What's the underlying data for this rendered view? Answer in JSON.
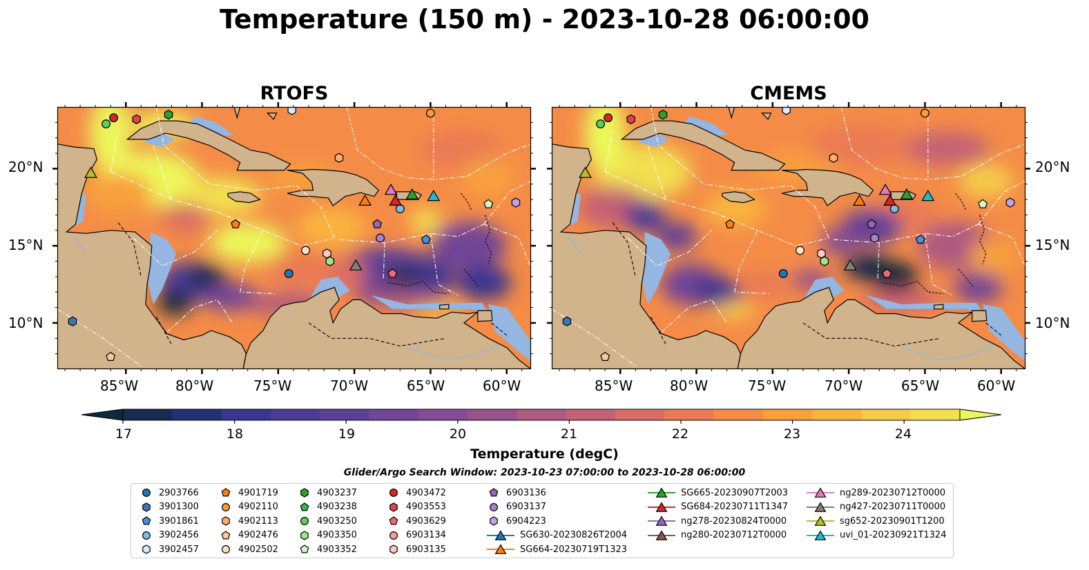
{
  "title": "Temperature (150 m) - 2023-10-28 06:00:00",
  "panels": [
    {
      "title": "RTOFS"
    },
    {
      "title": "CMEMS"
    }
  ],
  "axes": {
    "lon_ticks": [
      "85°W",
      "80°W",
      "75°W",
      "70°W",
      "65°W",
      "60°W"
    ],
    "lat_ticks": [
      "20°N",
      "15°N",
      "10°N"
    ]
  },
  "colorbar": {
    "label": "Temperature (degC)",
    "ticks": [
      "17",
      "18",
      "19",
      "20",
      "21",
      "22",
      "23",
      "24"
    ],
    "vmin": 16.75,
    "vmax": 24.5,
    "step": 0.5,
    "extend": "both",
    "colors": [
      "#0b2a3a",
      "#182a4e",
      "#253073",
      "#3a3590",
      "#4c3a97",
      "#5e3f97",
      "#714597",
      "#844c92",
      "#985189",
      "#ad5a80",
      "#c46275",
      "#d96c66",
      "#ea7a55",
      "#f48c47",
      "#f8a03c",
      "#f9b53d",
      "#f5cb48",
      "#f2df4f",
      "#ecf75a"
    ]
  },
  "map_colors": {
    "land": "#d2b48c",
    "shelf": "#95b6e0",
    "deep_pacific": "#0b2a3a",
    "eez_lines": "#ffffff",
    "borders": "#000000"
  },
  "search_window": "Glider/Argo Search Window: 2023-10-23 07:00:00 to 2023-10-28 06:00:00",
  "legend": [
    {
      "label": "2903766",
      "marker": "circle",
      "color": "#1f77b4"
    },
    {
      "label": "3901300",
      "marker": "hexagon",
      "color": "#3b78b2"
    },
    {
      "label": "3901861",
      "marker": "pentagon",
      "color": "#4a90d9"
    },
    {
      "label": "3902456",
      "marker": "circle",
      "color": "#7fbde8"
    },
    {
      "label": "3902457",
      "marker": "hexagon",
      "color": "#d4ecfb"
    },
    {
      "label": "4901719",
      "marker": "pentagon",
      "color": "#ff7f0e"
    },
    {
      "label": "4902110",
      "marker": "circle",
      "color": "#ff9838"
    },
    {
      "label": "4902113",
      "marker": "hexagon",
      "color": "#ffae6a"
    },
    {
      "label": "4902476",
      "marker": "pentagon",
      "color": "#ffc89a"
    },
    {
      "label": "4902502",
      "marker": "circle",
      "color": "#ffe1c6"
    },
    {
      "label": "4903237",
      "marker": "hexagon",
      "color": "#2ca02c"
    },
    {
      "label": "4903238",
      "marker": "pentagon",
      "color": "#3cb44b"
    },
    {
      "label": "4903250",
      "marker": "circle",
      "color": "#5ccf5c"
    },
    {
      "label": "4903350",
      "marker": "hexagon",
      "color": "#98e68f"
    },
    {
      "label": "4903352",
      "marker": "pentagon",
      "color": "#cff7c7"
    },
    {
      "label": "4903472",
      "marker": "circle",
      "color": "#d62728"
    },
    {
      "label": "4903553",
      "marker": "hexagon",
      "color": "#e2424a"
    },
    {
      "label": "4903629",
      "marker": "pentagon",
      "color": "#ec6a72"
    },
    {
      "label": "6903134",
      "marker": "circle",
      "color": "#f59c9e"
    },
    {
      "label": "6903135",
      "marker": "hexagon",
      "color": "#fcc8c6"
    },
    {
      "label": "6903136",
      "marker": "pentagon",
      "color": "#9467bd"
    },
    {
      "label": "6903137",
      "marker": "circle",
      "color": "#a880d0"
    },
    {
      "label": "6904223",
      "marker": "hexagon",
      "color": "#c3a3e6"
    },
    {
      "label": "SG630-20230826T2004",
      "marker": "triangle",
      "color": "#1f77b4",
      "line": true
    },
    {
      "label": "SG664-20230719T1323",
      "marker": "triangle",
      "color": "#ff7f0e",
      "line": true
    },
    {
      "label": "SG665-20230907T2003",
      "marker": "triangle",
      "color": "#2ca02c",
      "line": true
    },
    {
      "label": "SG684-20230711T1347",
      "marker": "triangle",
      "color": "#d62728",
      "line": true
    },
    {
      "label": "ng278-20230824T0000",
      "marker": "triangle",
      "color": "#9467bd",
      "line": true
    },
    {
      "label": "ng280-20230712T0000",
      "marker": "triangle",
      "color": "#8c564b",
      "line": true
    },
    {
      "label": "ng289-20230712T0000",
      "marker": "triangle",
      "color": "#e377c2",
      "line": true
    },
    {
      "label": "ng427-20230711T0000",
      "marker": "triangle",
      "color": "#7f7f7f",
      "line": true
    },
    {
      "label": "sg652-20230901T1200",
      "marker": "triangle",
      "color": "#bcbd22",
      "line": true
    },
    {
      "label": "uvi_01-20230921T1324",
      "marker": "triangle",
      "color": "#17becf",
      "line": true
    }
  ],
  "platforms": [
    {
      "label": "2903766",
      "lon": -74.3,
      "lat": 13.2
    },
    {
      "label": "3902457",
      "lon": -74.1,
      "lat": 23.8
    },
    {
      "label": "3901300",
      "lon": -88.5,
      "lat": 10.1
    },
    {
      "label": "3901861",
      "lon": -65.3,
      "lat": 15.4
    },
    {
      "label": "3902456",
      "lon": -67.0,
      "lat": 17.4
    },
    {
      "label": "4901719",
      "lon": -77.8,
      "lat": 16.4
    },
    {
      "label": "4902110",
      "lon": -65.0,
      "lat": 23.6
    },
    {
      "label": "4902113",
      "lon": -71.0,
      "lat": 20.7
    },
    {
      "label": "4902476",
      "lon": -86.0,
      "lat": 7.8
    },
    {
      "label": "4902502",
      "lon": -73.2,
      "lat": 14.7
    },
    {
      "label": "4903237",
      "lon": -82.2,
      "lat": 23.5
    },
    {
      "label": "4903250",
      "lon": -86.3,
      "lat": 22.9
    },
    {
      "label": "4903350",
      "lon": -71.6,
      "lat": 14.0
    },
    {
      "label": "4903352",
      "lon": -61.2,
      "lat": 17.7
    },
    {
      "label": "4903472",
      "lon": -85.8,
      "lat": 23.3
    },
    {
      "label": "4903553",
      "lon": -84.3,
      "lat": 23.2
    },
    {
      "label": "4903629",
      "lon": -67.5,
      "lat": 13.2
    },
    {
      "label": "6903135",
      "lon": -71.8,
      "lat": 14.5
    },
    {
      "label": "6903136",
      "lon": -68.5,
      "lat": 16.4
    },
    {
      "label": "6903137",
      "lon": -68.3,
      "lat": 15.5
    },
    {
      "label": "6904223",
      "lon": -59.4,
      "lat": 17.8
    },
    {
      "label": "SG664-20230719T1323",
      "lon": -69.3,
      "lat": 17.9
    },
    {
      "label": "SG665-20230907T2003",
      "lon": -66.2,
      "lat": 18.3
    },
    {
      "label": "SG684-20230711T1347",
      "lon": -67.3,
      "lat": 17.9
    },
    {
      "label": "ng289-20230712T0000",
      "lon": -67.6,
      "lat": 18.6
    },
    {
      "label": "ng427-20230711T0000",
      "lon": -69.9,
      "lat": 13.7
    },
    {
      "label": "sg652-20230901T1200",
      "lon": -87.3,
      "lat": 19.7
    },
    {
      "label": "uvi_01-20230921T1324",
      "lon": -64.8,
      "lat": 18.2
    }
  ]
}
